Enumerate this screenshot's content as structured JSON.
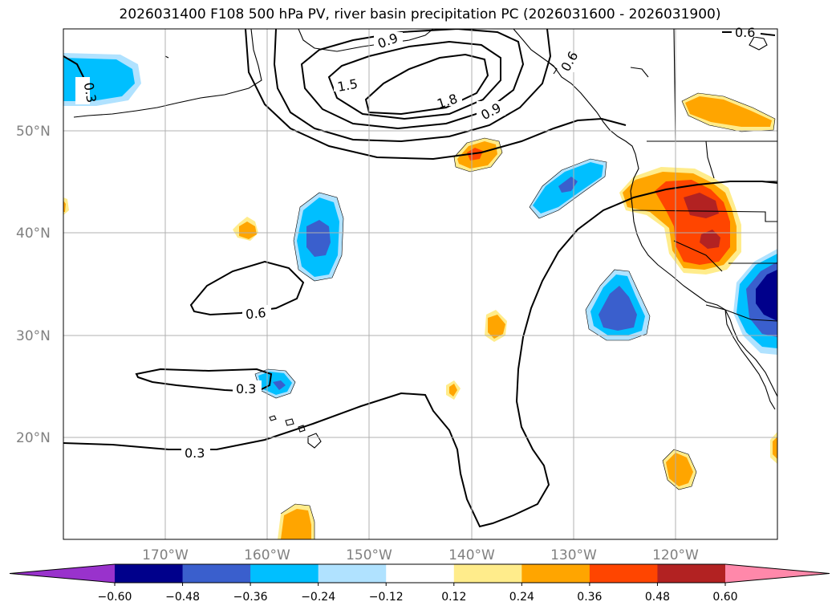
{
  "title": "2026031400 F108 500 hPa PV, river basin precipitation PC (2026031600 - 2026031900)",
  "map": {
    "lon_range": [
      -180,
      -110
    ],
    "lat_range": [
      10,
      60
    ],
    "lat_ticks": [
      "50°N",
      "40°N",
      "30°N",
      "20°N"
    ],
    "lon_ticks": [
      "170°W",
      "160°W",
      "150°W",
      "140°W",
      "130°W",
      "120°W"
    ],
    "grid": true,
    "contour_labels": [
      "0.9",
      "1.5",
      "1.8",
      "0.9",
      "0.6",
      "0.3",
      "0.3",
      "0.6",
      "0.3",
      "0.6"
    ]
  },
  "colorbar": {
    "tick_labels": [
      "−0.60",
      "−0.48",
      "−0.36",
      "−0.24",
      "−0.12",
      "0.12",
      "0.24",
      "0.36",
      "0.48",
      "0.60"
    ],
    "colors": [
      "#9932cc",
      "#00008b",
      "#3a5fcd",
      "#00bfff",
      "#b0e2ff",
      "#ffffff",
      "#ffec8b",
      "#ffa500",
      "#ff4500",
      "#b22222",
      "#ff88aa"
    ]
  },
  "colors": {
    "contour": "#000000",
    "grid": "#b0b0b0",
    "tick_text": "#808080"
  }
}
